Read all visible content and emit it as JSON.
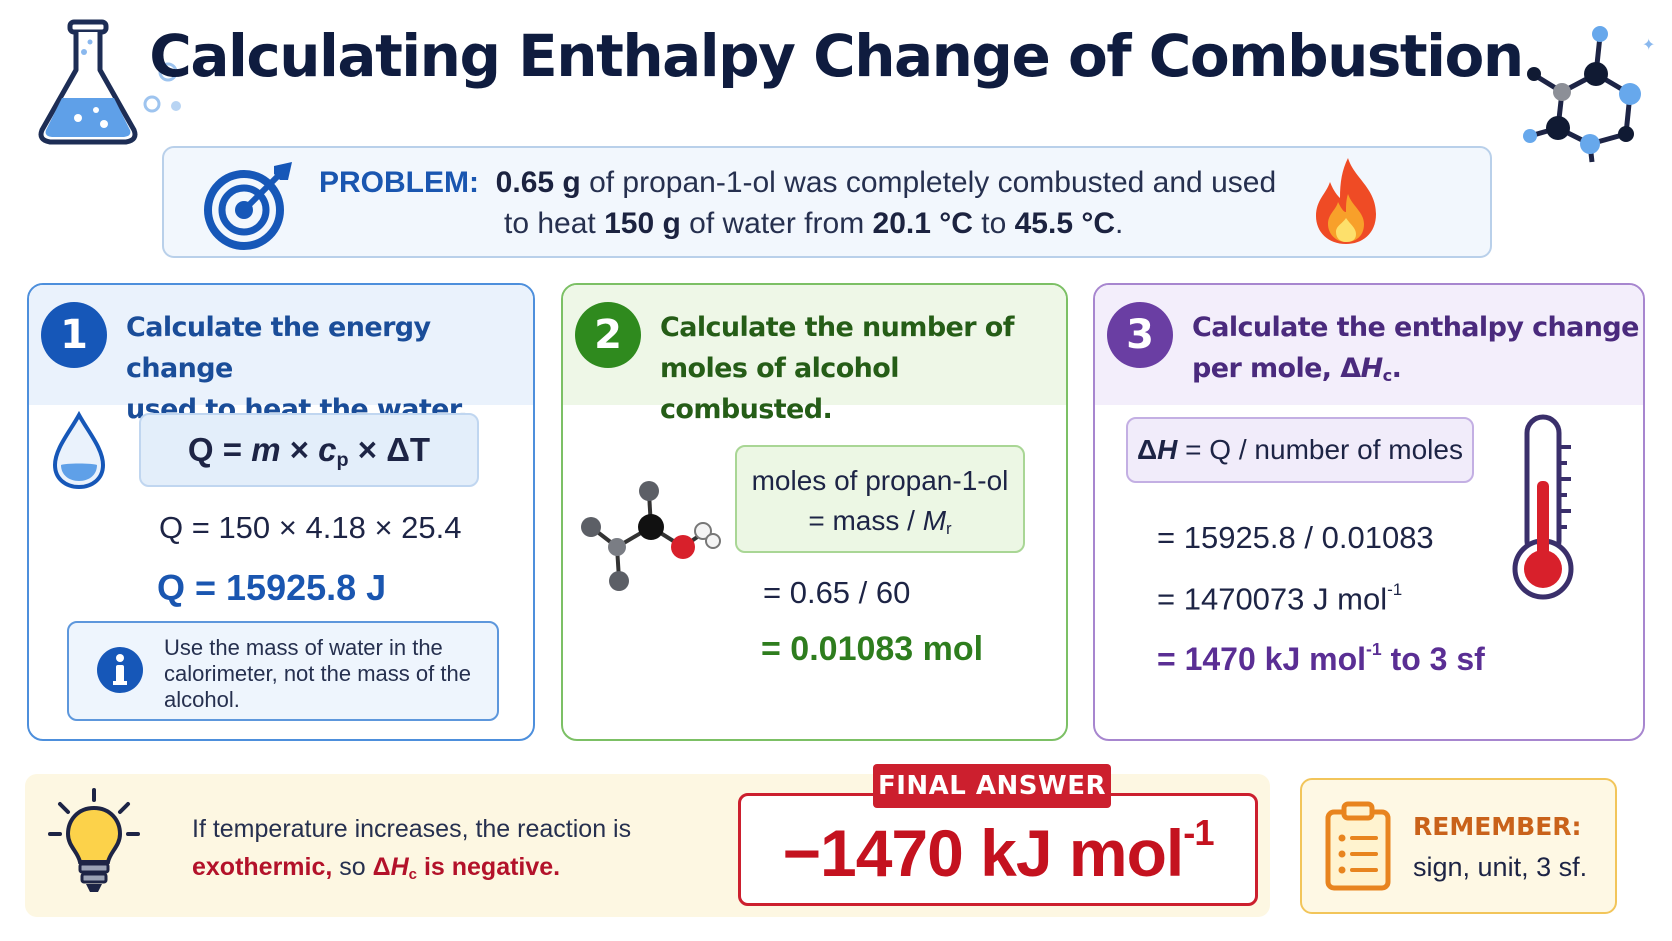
{
  "title": "Calculating Enthalpy Change of Combustion",
  "problem": {
    "label": "PROBLEM:",
    "mass_alcohol": "0.65 g",
    "text_a": " of propan-1-ol was completely combusted and used",
    "text_b": "to heat ",
    "mass_water": "150 g",
    "text_c": " of water from ",
    "t1": "20.1 °C",
    "text_d": " to ",
    "t2": "45.5 °C",
    "text_e": "."
  },
  "step1": {
    "number": "1",
    "heading_l1": "Calculate the energy change",
    "heading_l2": "used to heat the water.",
    "formula_q": "Q = ",
    "formula_m": "m",
    "formula_times1": " × ",
    "formula_c": "c",
    "formula_p": "p",
    "formula_times2": " × ΔT",
    "substitution": "Q = 150 × 4.18 × 25.4",
    "result": "Q = 15925.8 J",
    "info": "Use the mass of water in the calorimeter, not the mass of the alcohol."
  },
  "step2": {
    "number": "2",
    "heading_l1": "Calculate the number of",
    "heading_l2": "moles of alcohol combusted.",
    "formula_l1": "moles of propan-1-ol",
    "formula_l2a": "= mass / ",
    "formula_M": "M",
    "formula_r": "r",
    "substitution": "= 0.65 / 60",
    "result": "= 0.01083 mol"
  },
  "step3": {
    "number": "3",
    "heading_l1": "Calculate the enthalpy change",
    "heading_l2a": "per mole, Δ",
    "heading_H": "H",
    "heading_c": "c",
    "heading_end": ".",
    "formula_a": "Δ",
    "formula_H": "H",
    "formula_b": " = Q / number of moles",
    "line1": "= 15925.8 / 0.01083",
    "line2": "= 1470073 J mol",
    "line2_sup": "-1",
    "result_a": "= 1470 kJ mol",
    "result_sup": "-1",
    "result_b": " to 3 sf"
  },
  "tip": {
    "line1": "If temperature increases, the reaction is",
    "exo": "exothermic,",
    "so": " so ",
    "dh_a": "Δ",
    "dh_H": "H",
    "dh_c": "c",
    "dh_end": " is negative."
  },
  "final": {
    "label": "FINAL ANSWER",
    "value": "−1470 kJ mol",
    "sup": "-1"
  },
  "remember": {
    "title": "REMEMBER:",
    "text": "sign, unit, 3 sf."
  },
  "colors": {
    "title": "#0f1c3f",
    "step1": "#1657b8",
    "step2": "#2f8a1e",
    "step3": "#6a3ea3",
    "final": "#cc1f2e",
    "remember": "#c9621a"
  },
  "icons": [
    "flask-icon",
    "bubbles-icon",
    "molecule-icon",
    "target-icon",
    "flame-icon",
    "water-drop-icon",
    "info-icon",
    "propanol-molecule-icon",
    "thermometer-icon",
    "lightbulb-icon",
    "clipboard-icon"
  ]
}
